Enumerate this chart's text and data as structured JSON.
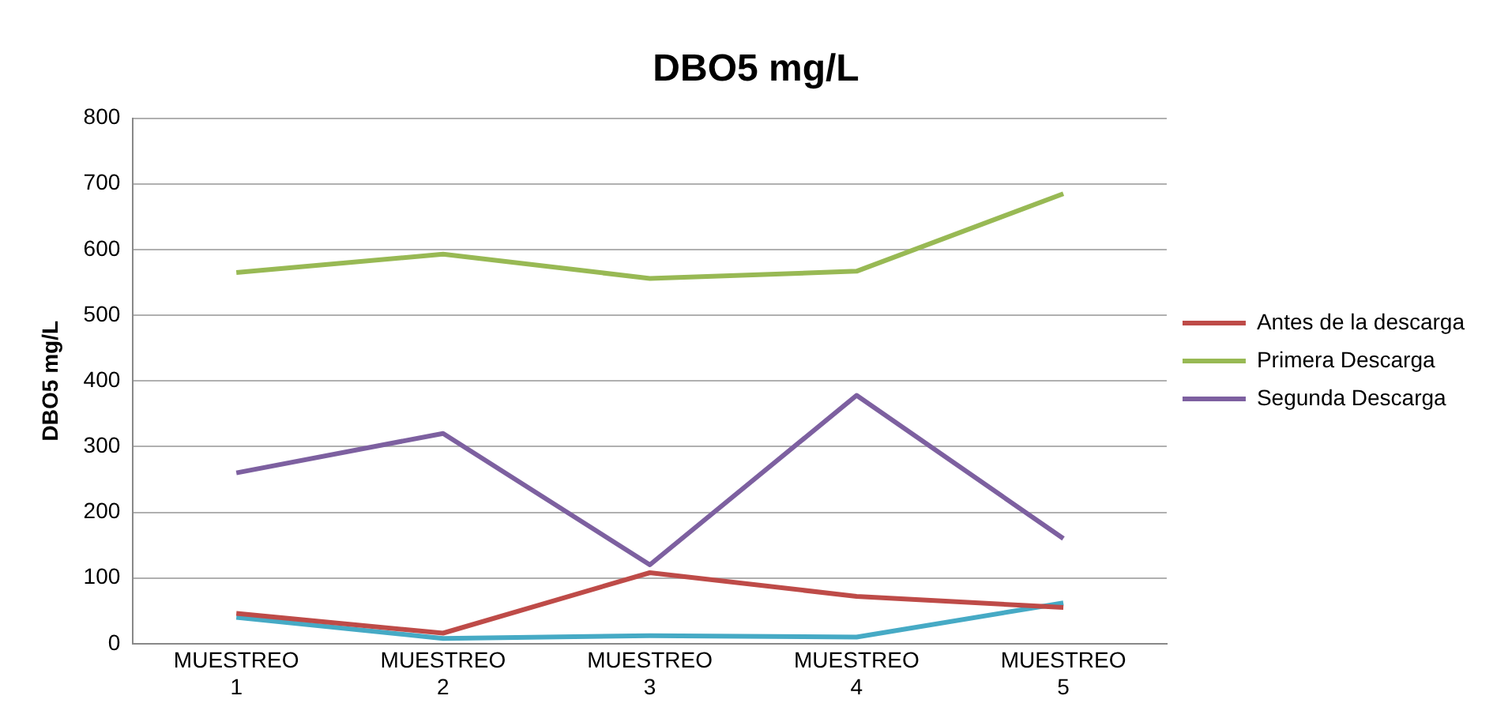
{
  "chart_data": {
    "type": "line",
    "title": "DBO5 mg/L",
    "ylabel": "DBO5 mg/L",
    "categories": [
      "MUESTREO 1",
      "MUESTREO 2",
      "MUESTREO 3",
      "MUESTREO 4",
      "MUESTREO 5"
    ],
    "series": [
      {
        "name": "Antes de la descarga",
        "color": "#be4b48",
        "values": [
          46,
          16,
          108,
          72,
          55
        ]
      },
      {
        "name": "Primera Descarga",
        "color": "#98b954",
        "values": [
          565,
          593,
          556,
          567,
          685
        ]
      },
      {
        "name": "Segunda Descarga",
        "color": "#7d60a0",
        "values": [
          260,
          320,
          120,
          378,
          160
        ]
      },
      {
        "color": "#46aac5",
        "values": [
          40,
          8,
          12,
          10,
          62
        ]
      }
    ],
    "ylim": [
      0,
      800
    ],
    "yticks": [
      0,
      100,
      200,
      300,
      400,
      500,
      600,
      700,
      800
    ],
    "grid": "y",
    "legend": "right",
    "marker": "none",
    "line_style": "solid"
  }
}
